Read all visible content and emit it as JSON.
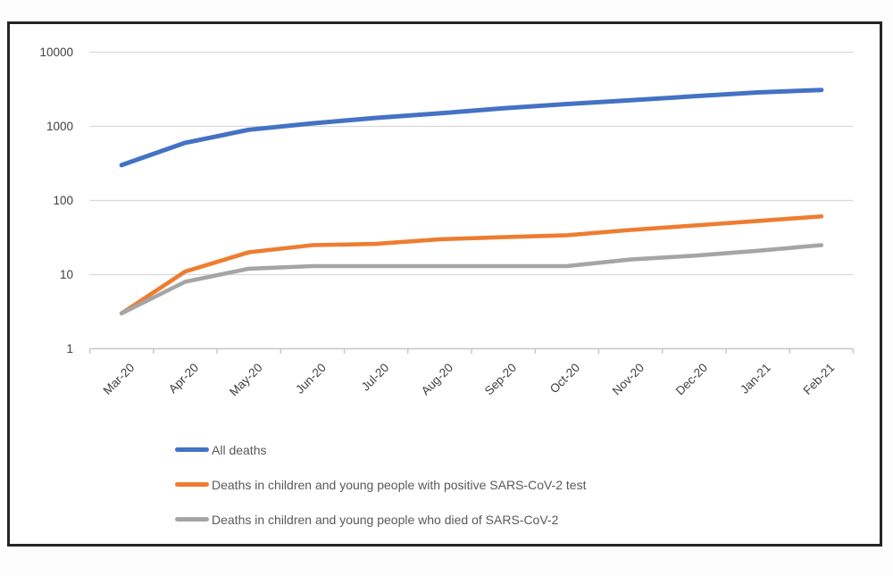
{
  "chart_data": {
    "type": "line",
    "title": "",
    "xlabel": "",
    "ylabel": "",
    "y_scale": "log",
    "ylim": [
      1,
      10000
    ],
    "grid": true,
    "legend_position": "bottom-left",
    "x_labels": [
      "Mar-20",
      "Apr-20",
      "May-20",
      "Jun-20",
      "Jul-20",
      "Aug-20",
      "Sep-20",
      "Oct-20",
      "Nov-20",
      "Dec-20",
      "Jan-21",
      "Feb-21"
    ],
    "y_tick_labels": [
      "1",
      "10",
      "100",
      "1000",
      "10000"
    ],
    "y_tick_values": [
      1,
      10,
      100,
      1000,
      10000
    ],
    "series": [
      {
        "name": "All deaths",
        "color": "#4472C4",
        "values": [
          300,
          600,
          900,
          1100,
          1300,
          1500,
          1750,
          2000,
          2250,
          2550,
          2870,
          3105
        ]
      },
      {
        "name": "Deaths in children and young people with positive SARS-CoV-2 test",
        "color": "#ED7D31",
        "values": [
          3,
          11,
          20,
          25,
          26,
          30,
          32,
          34,
          40,
          46,
          53,
          61
        ]
      },
      {
        "name": "Deaths in children and young people who died of SARS-CoV-2",
        "color": "#A5A5A5",
        "values": [
          3,
          8,
          12,
          13,
          13,
          13,
          13,
          13,
          16,
          18,
          21,
          25
        ]
      }
    ]
  },
  "colors": {
    "gridline": "#d9d9d9",
    "axis_line": "#c6c6c6",
    "tick_text": "#404040",
    "legend_text": "#595959",
    "frame_border": "#262626",
    "background": "#ffffff"
  }
}
